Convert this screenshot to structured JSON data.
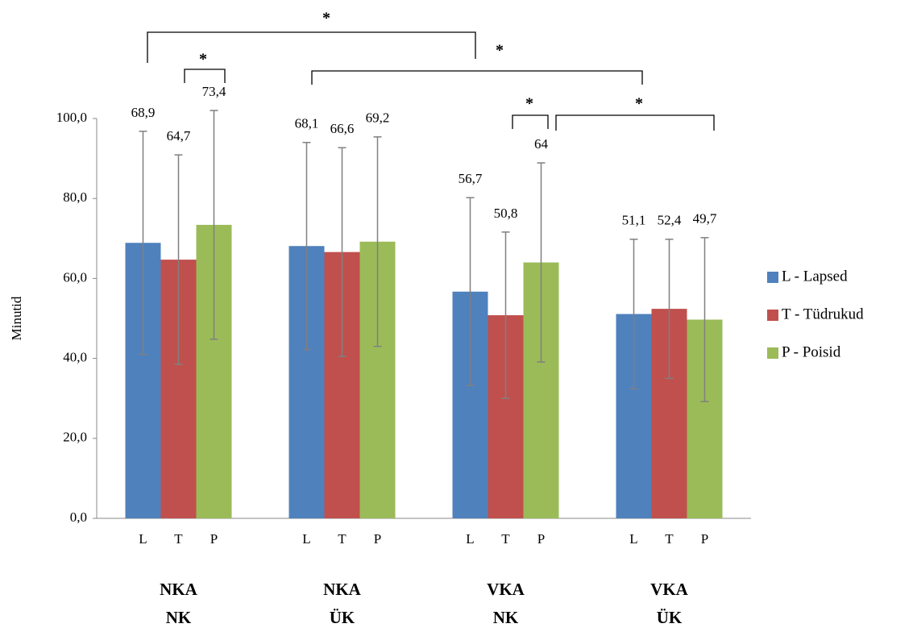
{
  "chart_data": {
    "type": "bar",
    "y_label": "Minutid",
    "categories": [
      [
        "NKA",
        "NK"
      ],
      [
        "NKA",
        "ÜK"
      ],
      [
        "VKA",
        "NK"
      ],
      [
        "VKA",
        "ÜK"
      ]
    ],
    "subcategories": [
      "L",
      "T",
      "P"
    ],
    "series": [
      {
        "name": "L - Lapsed",
        "color": "#4f81bd",
        "values": [
          68.9,
          68.1,
          56.7,
          51.1
        ],
        "value_labels": [
          "68,9",
          "68,1",
          "56,7",
          "51,1"
        ],
        "errors": [
          27.9,
          25.9,
          23.5,
          18.7
        ]
      },
      {
        "name": "T - Tüdrukud",
        "color": "#c0504d",
        "values": [
          64.7,
          66.6,
          50.8,
          52.4
        ],
        "value_labels": [
          "64,7",
          "66,6",
          "50,8",
          "52,4"
        ],
        "errors": [
          26.2,
          26.1,
          20.8,
          17.4
        ]
      },
      {
        "name": "P - Poisid",
        "color": "#9bbb59",
        "values": [
          73.4,
          69.2,
          64,
          49.7
        ],
        "value_labels": [
          "73,4",
          "69,2",
          "64",
          "49,7"
        ],
        "errors": [
          28.6,
          26.2,
          24.9,
          20.5
        ]
      }
    ],
    "error_color": "#808080",
    "ylim": [
      0,
      100
    ],
    "yticks": [
      {
        "value": 0,
        "label": "0,0"
      },
      {
        "value": 20,
        "label": "20,0"
      },
      {
        "value": 40,
        "label": "40,0"
      },
      {
        "value": 60,
        "label": "60,0"
      },
      {
        "value": 80,
        "label": "80,0"
      },
      {
        "value": 100,
        "label": "100,0"
      }
    ],
    "grid": false,
    "legend": "right",
    "annotations": [
      "*",
      "*",
      "*",
      "*",
      "*"
    ]
  }
}
